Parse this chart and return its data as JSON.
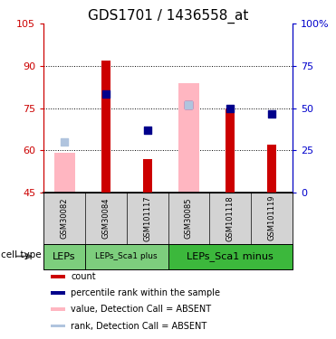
{
  "title": "GDS1701 / 1436558_at",
  "samples": [
    "GSM30082",
    "GSM30084",
    "GSM101117",
    "GSM30085",
    "GSM101118",
    "GSM101119"
  ],
  "ylim": [
    45,
    105
  ],
  "yticks": [
    45,
    60,
    75,
    90,
    105
  ],
  "ytick_labels": [
    "45",
    "60",
    "75",
    "90",
    "105"
  ],
  "right_yticks": [
    45,
    60,
    75,
    90,
    105
  ],
  "right_ytick_labels": [
    "0",
    "25",
    "50",
    "75",
    "100%"
  ],
  "red_bars": [
    null,
    92,
    57,
    null,
    75,
    62
  ],
  "red_bar_bottom": [
    45,
    45,
    45,
    45,
    45,
    45
  ],
  "pink_bars": [
    59,
    null,
    null,
    84,
    null,
    null
  ],
  "pink_bar_bottom": [
    45,
    null,
    null,
    45,
    null,
    null
  ],
  "blue_squares": [
    null,
    80,
    67,
    76,
    75,
    73
  ],
  "light_blue_squares": [
    63,
    null,
    null,
    76,
    null,
    null
  ],
  "groups": [
    {
      "label": "LEPs",
      "span": [
        0,
        1
      ],
      "color": "#7dce7d",
      "small_font": false
    },
    {
      "label": "LEPs_Sca1 plus",
      "span": [
        1,
        3
      ],
      "color": "#7dce7d",
      "small_font": true
    },
    {
      "label": "LEPs_Sca1 minus",
      "span": [
        3,
        6
      ],
      "color": "#3cb83c",
      "small_font": false
    }
  ],
  "legend_items": [
    {
      "color": "#cc0000",
      "label": "count"
    },
    {
      "color": "#00008b",
      "label": "percentile rank within the sample"
    },
    {
      "color": "#ffb6c1",
      "label": "value, Detection Call = ABSENT"
    },
    {
      "color": "#b0c4de",
      "label": "rank, Detection Call = ABSENT"
    }
  ],
  "cell_type_label": "cell type",
  "red_bar_width": 0.22,
  "pink_bar_width": 0.5,
  "square_size": 28,
  "title_fontsize": 11,
  "tick_fontsize": 8,
  "red_color": "#cc0000",
  "blue_color": "#00008b",
  "pink_color": "#ffb6c1",
  "light_blue_color": "#b0c4de",
  "bg_color": "#ffffff",
  "left_axis_color": "#cc0000",
  "right_axis_color": "#0000cc",
  "sample_label_bg": "#d3d3d3",
  "gridline_y": [
    60,
    75,
    90
  ]
}
